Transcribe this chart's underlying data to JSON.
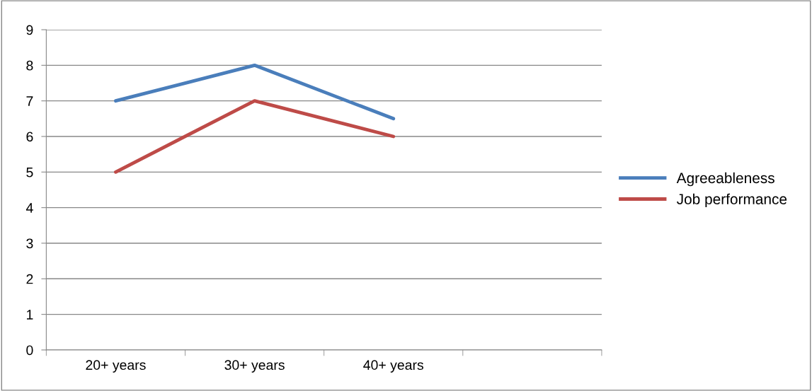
{
  "chart_data": {
    "type": "line",
    "categories": [
      "20+ years",
      "30+ years",
      "40+ years",
      null
    ],
    "series": [
      {
        "name": "Agreeableness",
        "color": "#4a7ebb",
        "values": [
          7,
          8,
          6.5,
          null
        ]
      },
      {
        "name": "Job performance",
        "color": "#be4b48",
        "values": [
          5,
          7,
          6,
          null
        ]
      }
    ],
    "ylim": [
      0,
      9
    ],
    "yticks": [
      0,
      1,
      2,
      3,
      4,
      5,
      6,
      7,
      8,
      9
    ],
    "grid": "y",
    "legend": "right",
    "marker": "none",
    "line_style": "solid"
  }
}
